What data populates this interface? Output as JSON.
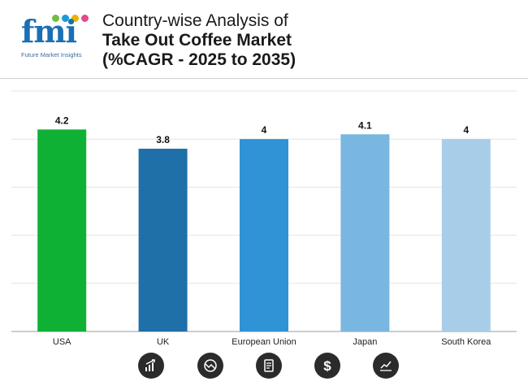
{
  "brand": {
    "logo_text": "fmi",
    "tagline": "Future Market Insights",
    "dot_colors": [
      "#6fbf44",
      "#1b9ad6",
      "#e8b400",
      "#e24a8d"
    ]
  },
  "title": {
    "line1": "Country-wise Analysis of",
    "line2": "Take Out Coffee Market",
    "line3": "(%CAGR - 2025 to 2035)"
  },
  "chart_data": {
    "type": "bar",
    "title": "Country-wise Analysis of Take Out Coffee Market (%CAGR - 2025 to 2035)",
    "categories": [
      "USA",
      "UK",
      "European Union",
      "Japan",
      "South Korea"
    ],
    "values": [
      4.2,
      3.8,
      4,
      4.1,
      4
    ],
    "value_labels": [
      "4.2",
      "3.8",
      "4",
      "4.1",
      "4"
    ],
    "colors": [
      "#0fb135",
      "#1f6fa8",
      "#2f93d6",
      "#7ab7e0",
      "#a7cde9"
    ],
    "xlabel": "",
    "ylabel": "",
    "ylim": [
      0,
      5
    ],
    "grid": true,
    "legend": "none"
  },
  "footer_icons": [
    "growth-chart-icon",
    "analysis-icon",
    "report-icon",
    "dollar-icon",
    "trend-icon"
  ]
}
